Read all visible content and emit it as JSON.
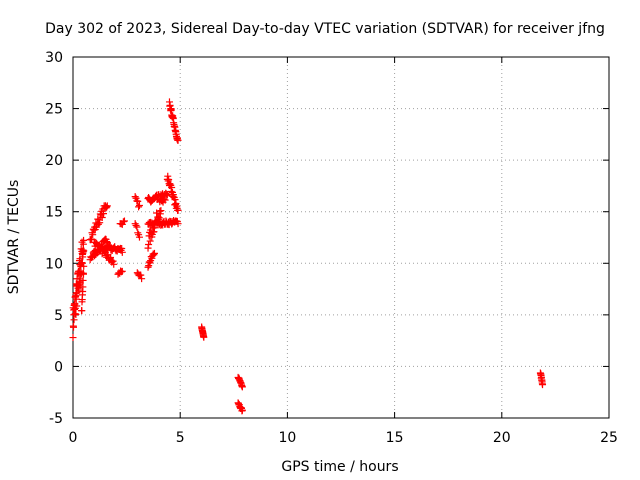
{
  "chart_data": {
    "type": "scatter",
    "title": "Day 302 of 2023, Sidereal Day-to-day VTEC variation (SDTVAR) for receiver jfng",
    "xlabel": "GPS time / hours",
    "ylabel": "SDTVAR / TECUs",
    "xlim": [
      0,
      25
    ],
    "ylim": [
      -5,
      30
    ],
    "xticks": [
      0,
      5,
      10,
      15,
      20,
      25
    ],
    "yticks": [
      -5,
      0,
      5,
      10,
      15,
      20,
      25,
      30
    ],
    "grid": true,
    "marker": "+",
    "marker_color": "#ff0000",
    "series": [
      {
        "segments": [
          {
            "x0": 0.0,
            "x1": 0.5,
            "y0": 4.3,
            "y1": 12.0,
            "step": 0.008,
            "spread": 3.0
          },
          {
            "x0": 0.4,
            "x1": 0.5,
            "y0": 5.0,
            "y1": 9.5,
            "step": 0.01,
            "spread": 1.0
          },
          {
            "x0": 0.8,
            "x1": 1.6,
            "y0": 10.5,
            "y1": 12.3,
            "step": 0.03,
            "spread": 0.6
          },
          {
            "x0": 0.8,
            "x1": 1.6,
            "y0": 12.5,
            "y1": 15.8,
            "step": 0.03,
            "spread": 0.8
          },
          {
            "x0": 1.0,
            "x1": 1.9,
            "y0": 12.0,
            "y1": 10.0,
            "step": 0.03,
            "spread": 0.6
          },
          {
            "x0": 1.5,
            "x1": 2.3,
            "y0": 11.5,
            "y1": 11.3,
            "step": 0.03,
            "spread": 0.5
          },
          {
            "x0": 2.1,
            "x1": 2.3,
            "y0": 9.0,
            "y1": 9.3,
            "step": 0.04,
            "spread": 0.3
          },
          {
            "x0": 2.2,
            "x1": 2.4,
            "y0": 13.8,
            "y1": 14.0,
            "step": 0.05,
            "spread": 0.3
          },
          {
            "x0": 2.9,
            "x1": 3.1,
            "y0": 16.3,
            "y1": 15.5,
            "step": 0.04,
            "spread": 0.4
          },
          {
            "x0": 2.9,
            "x1": 3.1,
            "y0": 13.8,
            "y1": 12.7,
            "step": 0.04,
            "spread": 0.4
          },
          {
            "x0": 3.0,
            "x1": 3.2,
            "y0": 9.2,
            "y1": 8.6,
            "step": 0.04,
            "spread": 0.3
          },
          {
            "x0": 3.5,
            "x1": 3.8,
            "y0": 9.8,
            "y1": 11.0,
            "step": 0.03,
            "spread": 0.5
          },
          {
            "x0": 3.5,
            "x1": 4.2,
            "y0": 12.0,
            "y1": 16.0,
            "step": 0.025,
            "spread": 1.2
          },
          {
            "x0": 3.5,
            "x1": 4.4,
            "y0": 16.0,
            "y1": 16.5,
            "step": 0.025,
            "spread": 0.8
          },
          {
            "x0": 3.5,
            "x1": 4.9,
            "y0": 13.8,
            "y1": 14.0,
            "step": 0.03,
            "spread": 0.4
          },
          {
            "x0": 4.4,
            "x1": 4.9,
            "y0": 18.5,
            "y1": 14.8,
            "step": 0.02,
            "spread": 0.8
          },
          {
            "x0": 4.5,
            "x1": 4.9,
            "y0": 25.5,
            "y1": 21.8,
            "step": 0.015,
            "spread": 0.4
          },
          {
            "x0": 6.0,
            "x1": 6.1,
            "y0": 3.8,
            "y1": 2.8,
            "step": 0.01,
            "spread": 0.1
          },
          {
            "x0": 7.7,
            "x1": 7.9,
            "y0": -1.0,
            "y1": -1.9,
            "step": 0.02,
            "spread": 0.2
          },
          {
            "x0": 7.7,
            "x1": 7.9,
            "y0": -3.5,
            "y1": -4.3,
            "step": 0.02,
            "spread": 0.2
          },
          {
            "x0": 21.8,
            "x1": 21.9,
            "y0": -0.6,
            "y1": -1.7,
            "step": 0.01,
            "spread": 0.2
          }
        ]
      }
    ]
  }
}
